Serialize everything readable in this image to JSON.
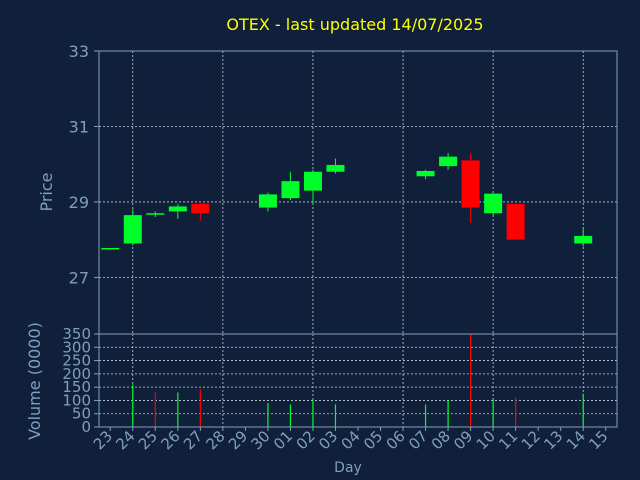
{
  "title": "OTEX - last updated 14/07/2025",
  "colors": {
    "background": "#10203a",
    "axis": "#7f9fc0",
    "grid": "#c8d0d8",
    "title": "#ffff00",
    "label": "#7f9fc0",
    "up": "#00ff2a",
    "down": "#ff0000"
  },
  "chart_data": [
    {
      "type": "candlestick",
      "ylabel": "Price",
      "ylim": [
        25.5,
        33
      ],
      "yticks": [
        27,
        29,
        31,
        33
      ],
      "grid": true,
      "categories": [
        "23",
        "24",
        "25",
        "26",
        "27",
        "28",
        "29",
        "30",
        "01",
        "02",
        "03",
        "04",
        "05",
        "06",
        "07",
        "08",
        "09",
        "10",
        "11",
        "12",
        "13",
        "14",
        "15"
      ],
      "candles": [
        {
          "day": "23",
          "open": 27.78,
          "close": 27.78,
          "high": 27.78,
          "low": 27.78
        },
        {
          "day": "24",
          "open": 27.9,
          "close": 28.65,
          "high": 28.8,
          "low": 27.85
        },
        {
          "day": "25",
          "open": 28.7,
          "close": 28.7,
          "high": 28.75,
          "low": 28.6
        },
        {
          "day": "26",
          "open": 28.75,
          "close": 28.88,
          "high": 28.95,
          "low": 28.55
        },
        {
          "day": "27",
          "open": 28.95,
          "close": 28.7,
          "high": 29.0,
          "low": 28.5
        },
        {
          "day": "30",
          "open": 28.85,
          "close": 29.2,
          "high": 29.25,
          "low": 28.75
        },
        {
          "day": "01",
          "open": 29.1,
          "close": 29.55,
          "high": 29.8,
          "low": 29.05
        },
        {
          "day": "02",
          "open": 29.3,
          "close": 29.8,
          "high": 29.85,
          "low": 28.95
        },
        {
          "day": "03",
          "open": 29.8,
          "close": 29.98,
          "high": 30.15,
          "low": 29.75
        },
        {
          "day": "07",
          "open": 29.68,
          "close": 29.82,
          "high": 29.85,
          "low": 29.6
        },
        {
          "day": "08",
          "open": 29.95,
          "close": 30.2,
          "high": 30.3,
          "low": 29.85
        },
        {
          "day": "09",
          "open": 30.1,
          "close": 28.85,
          "high": 30.3,
          "low": 28.45
        },
        {
          "day": "10",
          "open": 28.7,
          "close": 29.22,
          "high": 29.25,
          "low": 28.65
        },
        {
          "day": "11",
          "open": 28.95,
          "close": 28.0,
          "high": 28.95,
          "low": 28.0
        },
        {
          "day": "14",
          "open": 27.9,
          "close": 28.1,
          "high": 28.3,
          "low": 27.82
        }
      ]
    },
    {
      "type": "bar",
      "ylabel": "Volume (0000)",
      "xlabel": "Day",
      "ylim": [
        0,
        350
      ],
      "yticks": [
        0,
        50,
        100,
        150,
        200,
        250,
        300,
        350
      ],
      "grid": true,
      "volumes": [
        {
          "day": "24",
          "value": 160,
          "direction": "up"
        },
        {
          "day": "25",
          "value": 130,
          "direction": "down"
        },
        {
          "day": "26",
          "value": 130,
          "direction": "up"
        },
        {
          "day": "27",
          "value": 140,
          "direction": "down"
        },
        {
          "day": "30",
          "value": 90,
          "direction": "up"
        },
        {
          "day": "01",
          "value": 85,
          "direction": "up"
        },
        {
          "day": "02",
          "value": 100,
          "direction": "up"
        },
        {
          "day": "03",
          "value": 85,
          "direction": "up"
        },
        {
          "day": "07",
          "value": 85,
          "direction": "up"
        },
        {
          "day": "08",
          "value": 100,
          "direction": "up"
        },
        {
          "day": "09",
          "value": 350,
          "direction": "down"
        },
        {
          "day": "10",
          "value": 105,
          "direction": "up"
        },
        {
          "day": "11",
          "value": 110,
          "direction": "down"
        },
        {
          "day": "14",
          "value": 125,
          "direction": "up"
        }
      ]
    }
  ]
}
